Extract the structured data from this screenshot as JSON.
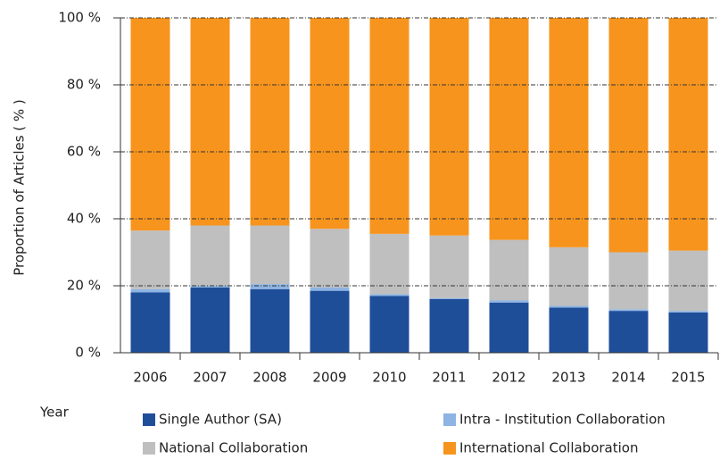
{
  "chart_data": {
    "type": "stacked_bar",
    "y_label": "Proportion of Articles ( % )",
    "x_label": "Year",
    "categories": [
      "2006",
      "2007",
      "2008",
      "2009",
      "2010",
      "2011",
      "2012",
      "2013",
      "2014",
      "2015"
    ],
    "series": [
      {
        "name": "Single Author (SA)",
        "color": "#1f4e99",
        "values": [
          18,
          19.5,
          19,
          18.5,
          17,
          16,
          15,
          13.5,
          12.5,
          12
        ]
      },
      {
        "name": "Intra - Institution Collaboration",
        "color": "#8db4e2",
        "values": [
          1,
          0.5,
          1.5,
          1,
          0.5,
          0.3,
          0.7,
          0.5,
          0.5,
          0.5
        ]
      },
      {
        "name": "National Collaboration",
        "color": "#bfbfbf",
        "values": [
          17.5,
          18,
          17.5,
          17.5,
          18,
          18.7,
          18,
          17.5,
          17,
          18
        ]
      },
      {
        "name": "International Collaboration",
        "color": "#f7941d",
        "values": [
          63.5,
          62,
          62,
          63,
          64.5,
          65,
          66.3,
          68.5,
          70,
          69.5
        ]
      }
    ],
    "ylim": [
      0,
      100
    ],
    "yticks": [
      {
        "value": 0,
        "label": "0 %"
      },
      {
        "value": 20,
        "label": "20 %"
      },
      {
        "value": 40,
        "label": "40 %"
      },
      {
        "value": 60,
        "label": "60 %"
      },
      {
        "value": 80,
        "label": "80 %"
      },
      {
        "value": 100,
        "label": "100 %"
      }
    ],
    "grid": true
  }
}
